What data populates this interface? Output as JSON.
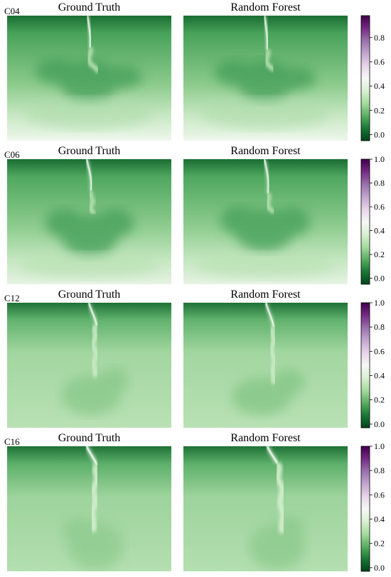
{
  "panel_titles": {
    "left": "Ground Truth",
    "right": "Random Forest"
  },
  "colormap": {
    "name": "PRGn (reversed)",
    "low": "#00441b",
    "mid": "#f7f7f7",
    "high": "#40004b"
  },
  "chart_data": [
    {
      "type": "heatmap",
      "case": "C04",
      "panels": [
        "Ground Truth",
        "Random Forest"
      ],
      "colorbar": {
        "range": [
          -0.05,
          0.98
        ],
        "ticks": [
          "0.0",
          "0.2",
          "0.4",
          "0.6",
          "0.8"
        ]
      }
    },
    {
      "type": "heatmap",
      "case": "C06",
      "panels": [
        "Ground Truth",
        "Random Forest"
      ],
      "colorbar": {
        "range": [
          -0.05,
          1.0
        ],
        "ticks": [
          "0.0",
          "0.2",
          "0.4",
          "0.6",
          "0.8",
          "1.0"
        ]
      }
    },
    {
      "type": "heatmap",
      "case": "C12",
      "panels": [
        "Ground Truth",
        "Random Forest"
      ],
      "colorbar": {
        "range": [
          -0.03,
          1.0
        ],
        "ticks": [
          "0.0",
          "0.2",
          "0.4",
          "0.6",
          "0.8",
          "1.0"
        ]
      }
    },
    {
      "type": "heatmap",
      "case": "C16",
      "panels": [
        "Ground Truth",
        "Random Forest"
      ],
      "colorbar": {
        "range": [
          -0.03,
          1.0
        ],
        "ticks": [
          "0.0",
          "0.2",
          "0.4",
          "0.6",
          "0.8",
          "1.0"
        ]
      }
    }
  ]
}
